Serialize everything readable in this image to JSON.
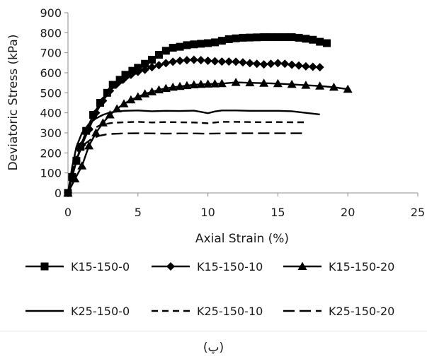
{
  "chart_data": {
    "type": "line",
    "title": "",
    "xlabel": "Axial Strain (%)",
    "ylabel": "Deviatoric Stress (kPa)",
    "xlim": [
      0,
      25
    ],
    "ylim": [
      0,
      900
    ],
    "xticks": [
      "0",
      "5",
      "10",
      "15",
      "20",
      "25"
    ],
    "yticks": [
      "0",
      "100",
      "200",
      "300",
      "400",
      "500",
      "600",
      "700",
      "800",
      "900"
    ],
    "grid": false,
    "legend_position": "bottom",
    "series": [
      {
        "name": "K15-150-0",
        "marker": "square",
        "dash": "solid",
        "x": [
          0,
          0.3,
          0.6,
          0.9,
          1.3,
          1.8,
          2.3,
          2.8,
          3.2,
          3.7,
          4.1,
          4.6,
          5.0,
          5.5,
          6.0,
          6.5,
          7.0,
          7.5,
          8.0,
          8.5,
          9.0,
          9.5,
          10.0,
          10.5,
          11.0,
          11.5,
          12.0,
          12.5,
          13.0,
          13.5,
          14.0,
          14.5,
          15.0,
          15.5,
          16.0,
          16.5,
          17.0,
          17.5,
          18.0,
          18.5
        ],
        "y": [
          0,
          80,
          160,
          230,
          310,
          390,
          450,
          500,
          540,
          565,
          590,
          610,
          625,
          645,
          665,
          690,
          710,
          725,
          730,
          738,
          742,
          745,
          748,
          752,
          760,
          768,
          772,
          775,
          776,
          777,
          778,
          778,
          778,
          778,
          778,
          775,
          770,
          765,
          755,
          748
        ]
      },
      {
        "name": "K15-150-10",
        "marker": "diamond",
        "dash": "solid",
        "x": [
          0,
          0.3,
          0.6,
          1.0,
          1.5,
          2.0,
          2.5,
          3.0,
          3.5,
          4.0,
          4.5,
          5.0,
          5.5,
          6.0,
          6.5,
          7.0,
          7.5,
          8.0,
          8.5,
          9.0,
          9.5,
          10.0,
          10.5,
          11.0,
          11.5,
          12.0,
          12.5,
          13.0,
          13.5,
          14.0,
          14.5,
          15.0,
          15.5,
          16.0,
          16.5,
          17.0,
          17.5,
          18.0
        ],
        "y": [
          0,
          80,
          160,
          240,
          320,
          400,
          460,
          510,
          545,
          570,
          590,
          605,
          615,
          628,
          638,
          648,
          655,
          660,
          663,
          665,
          663,
          660,
          658,
          656,
          656,
          655,
          652,
          648,
          645,
          642,
          645,
          648,
          645,
          640,
          636,
          632,
          630,
          628
        ]
      },
      {
        "name": "K15-150-20",
        "marker": "triangle",
        "dash": "solid",
        "x": [
          0,
          0.5,
          1.0,
          1.5,
          2.0,
          2.5,
          3.0,
          3.5,
          4.0,
          4.5,
          5.0,
          5.5,
          6.0,
          6.5,
          7.0,
          7.5,
          8.0,
          8.5,
          9.0,
          9.5,
          10.0,
          10.5,
          11.0,
          12.0,
          13.0,
          14.0,
          15.0,
          16.0,
          17.0,
          18.0,
          19.0,
          20.0
        ],
        "y": [
          0,
          70,
          135,
          235,
          300,
          350,
          390,
          420,
          445,
          465,
          480,
          495,
          505,
          515,
          522,
          528,
          532,
          536,
          540,
          542,
          544,
          545,
          546,
          552,
          550,
          548,
          546,
          542,
          538,
          534,
          528,
          518
        ]
      },
      {
        "name": "K25-150-0",
        "marker": "none",
        "dash": "solid",
        "x": [
          0,
          0.3,
          0.6,
          1.0,
          1.5,
          2.0,
          2.5,
          3.0,
          4.0,
          5.0,
          6.0,
          7.0,
          8.0,
          9.0,
          9.5,
          10.0,
          10.5,
          11.0,
          12.0,
          13.0,
          14.0,
          15.0,
          16.0,
          17.0,
          18.0
        ],
        "y": [
          0,
          130,
          230,
          300,
          345,
          372,
          390,
          402,
          410,
          412,
          408,
          410,
          409,
          411,
          405,
          398,
          407,
          412,
          412,
          410,
          410,
          410,
          408,
          400,
          392
        ]
      },
      {
        "name": "K25-150-10",
        "marker": "none",
        "dash": "short",
        "x": [
          0,
          0.4,
          0.8,
          1.2,
          1.7,
          2.2,
          2.7,
          3.2,
          4.0,
          5.0,
          6.0,
          7.0,
          8.0,
          9.0,
          10.0,
          11.0,
          12.0,
          13.0,
          14.0,
          15.0,
          16.0,
          17.0
        ],
        "y": [
          0,
          140,
          230,
          280,
          315,
          335,
          345,
          350,
          353,
          355,
          352,
          354,
          353,
          352,
          348,
          355,
          355,
          354,
          353,
          354,
          353,
          353
        ]
      },
      {
        "name": "K25-150-20",
        "marker": "none",
        "dash": "long",
        "x": [
          0,
          0.4,
          0.8,
          1.2,
          1.7,
          2.2,
          2.7,
          3.2,
          4.0,
          5.0,
          6.0,
          7.0,
          8.0,
          9.0,
          10.0,
          11.0,
          12.0,
          13.0,
          14.0,
          15.0,
          16.0,
          17.0
        ],
        "y": [
          0,
          120,
          200,
          245,
          270,
          285,
          292,
          295,
          297,
          298,
          297,
          296,
          297,
          297,
          296,
          297,
          298,
          298,
          298,
          298,
          298,
          298
        ]
      }
    ]
  },
  "caption": "(پ)"
}
